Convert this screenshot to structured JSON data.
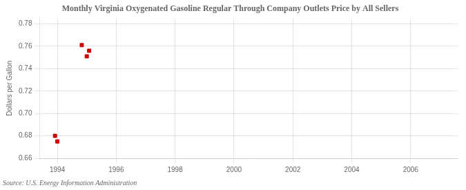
{
  "chart_data": {
    "type": "scatter",
    "title": "Monthly Virginia Oxygenated Gasoline Regular Through Company Outlets Price by All Sellers",
    "y_label": "Dollars per Gallon",
    "annotations": [
      "Source: U.S. Energy Information Administration"
    ],
    "x": [
      1993.92,
      1994.0,
      1994.83,
      1995.0,
      1995.08
    ],
    "values": [
      0.68,
      0.675,
      0.761,
      0.751,
      0.756
    ],
    "color": "#cc0000",
    "marker": "square",
    "xlim": [
      1993.4,
      2007.6
    ],
    "ylim": [
      0.66,
      0.785
    ],
    "xticks": [
      1994,
      1996,
      1998,
      2000,
      2002,
      2004,
      2006
    ],
    "yticks": [
      0.66,
      0.68,
      {
        "value": 0.7,
        "label": "0.70"
      },
      0.72,
      0.74,
      0.76,
      0.78
    ],
    "grid": true
  }
}
